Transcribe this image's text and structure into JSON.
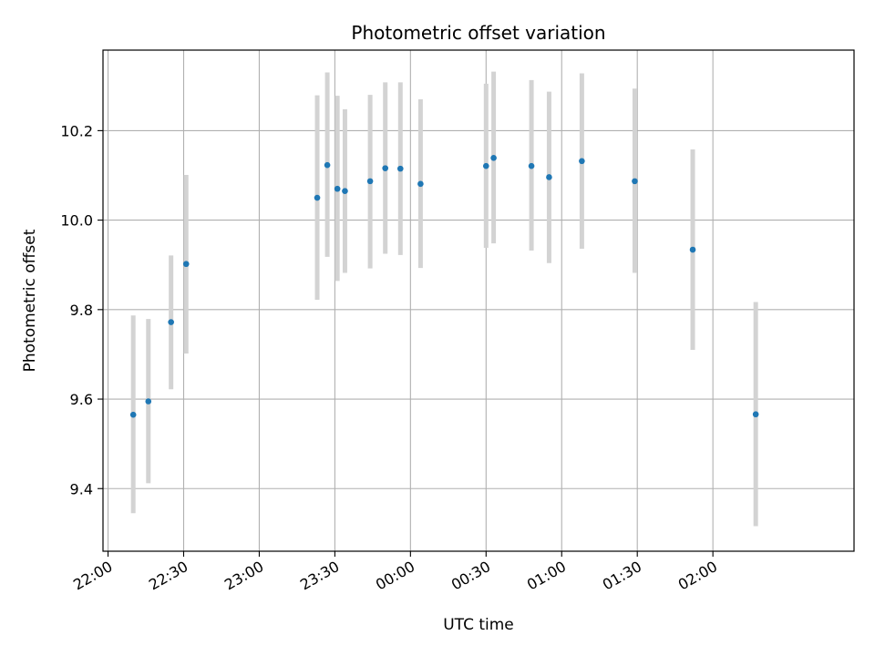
{
  "chart_data": {
    "type": "scatter",
    "title": "Photometric offset variation",
    "xlabel": "UTC time",
    "ylabel": "Photometric offset",
    "grid": true,
    "xlim": [
      "21:58",
      "02:56"
    ],
    "ylim": [
      9.26,
      10.38
    ],
    "x_ticks": [
      "22:00",
      "22:30",
      "23:00",
      "23:30",
      "00:00",
      "00:30",
      "01:00",
      "01:30",
      "02:00"
    ],
    "y_ticks": [
      9.4,
      9.6,
      9.8,
      10.0,
      10.2
    ],
    "y_tick_labels": [
      "9.4",
      "9.6",
      "9.8",
      "10.0",
      "10.2"
    ],
    "point_color": "#1f77b4",
    "errorbar_color": "#d3d3d3",
    "series": [
      {
        "x": [
          "22:10",
          "22:16",
          "22:25",
          "22:31",
          "23:23",
          "23:27",
          "23:31",
          "23:34",
          "23:44",
          "23:50",
          "23:56",
          "00:04",
          "00:30",
          "00:33",
          "00:48",
          "00:55",
          "01:08",
          "01:29",
          "01:52",
          "02:17"
        ],
        "y": [
          9.565,
          9.595,
          9.772,
          9.902,
          10.05,
          10.123,
          10.07,
          10.065,
          10.087,
          10.116,
          10.115,
          10.081,
          10.121,
          10.139,
          10.121,
          10.096,
          10.132,
          10.087,
          9.934,
          9.566
        ],
        "yerr_low": [
          9.345,
          9.412,
          9.622,
          9.702,
          9.822,
          9.918,
          9.864,
          9.882,
          9.892,
          9.925,
          9.922,
          9.893,
          9.938,
          9.948,
          9.932,
          9.904,
          9.936,
          9.882,
          9.71,
          9.316
        ],
        "yerr_high": [
          9.787,
          9.779,
          9.921,
          10.101,
          10.279,
          10.33,
          10.278,
          10.248,
          10.28,
          10.308,
          10.308,
          10.27,
          10.305,
          10.332,
          10.313,
          10.287,
          10.328,
          10.294,
          10.158,
          9.817
        ]
      }
    ]
  }
}
